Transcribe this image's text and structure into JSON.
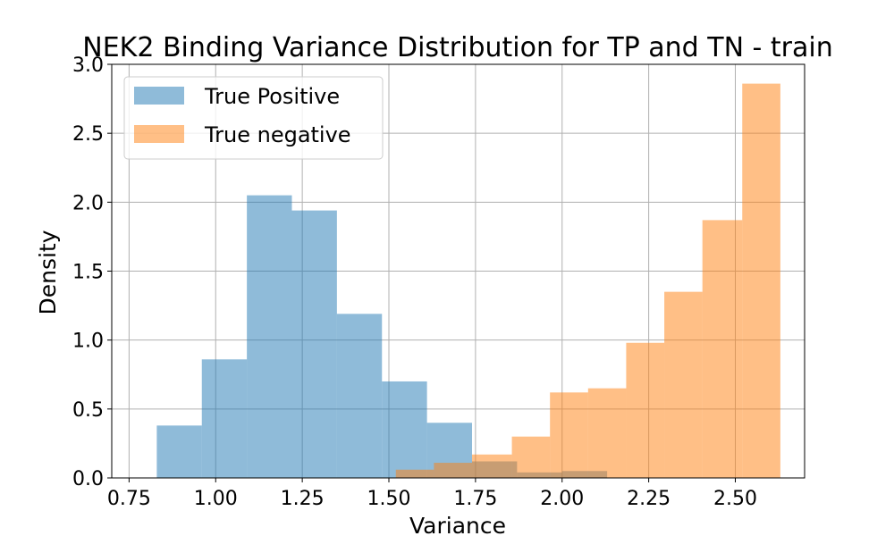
{
  "chart_data": {
    "type": "histogram",
    "title": "NEK2 Binding Variance Distribution for TP and TN - train",
    "xlabel": "Variance",
    "ylabel": "Density",
    "xlim": [
      0.7,
      2.7
    ],
    "ylim": [
      0.0,
      3.0
    ],
    "xticks": [
      "0.75",
      "1.00",
      "1.25",
      "1.50",
      "1.75",
      "2.00",
      "2.25",
      "2.50"
    ],
    "xtick_values": [
      0.75,
      1.0,
      1.25,
      1.5,
      1.75,
      2.0,
      2.25,
      2.5
    ],
    "yticks": [
      "0.0",
      "0.5",
      "1.0",
      "1.5",
      "2.0",
      "2.5",
      "3.0"
    ],
    "ytick_values": [
      0.0,
      0.5,
      1.0,
      1.5,
      2.0,
      2.5,
      3.0
    ],
    "grid": true,
    "legend_position": "top-left",
    "series": [
      {
        "name": "True Positive",
        "color": "#1f77b4",
        "opacity": 0.5,
        "bin_edges": [
          0.83,
          0.96,
          1.09,
          1.22,
          1.35,
          1.48,
          1.61,
          1.74,
          1.87,
          2.0,
          2.13
        ],
        "density": [
          0.38,
          0.86,
          2.05,
          1.94,
          1.19,
          0.7,
          0.4,
          0.12,
          0.04,
          0.05
        ]
      },
      {
        "name": "True negative",
        "color": "#ff7f0e",
        "opacity": 0.5,
        "bin_edges": [
          1.52,
          1.63,
          1.74,
          1.855,
          1.965,
          2.075,
          2.185,
          2.295,
          2.405,
          2.52,
          2.63
        ],
        "density": [
          0.06,
          0.11,
          0.17,
          0.3,
          0.62,
          0.65,
          0.98,
          1.35,
          1.87,
          2.86
        ]
      }
    ]
  }
}
